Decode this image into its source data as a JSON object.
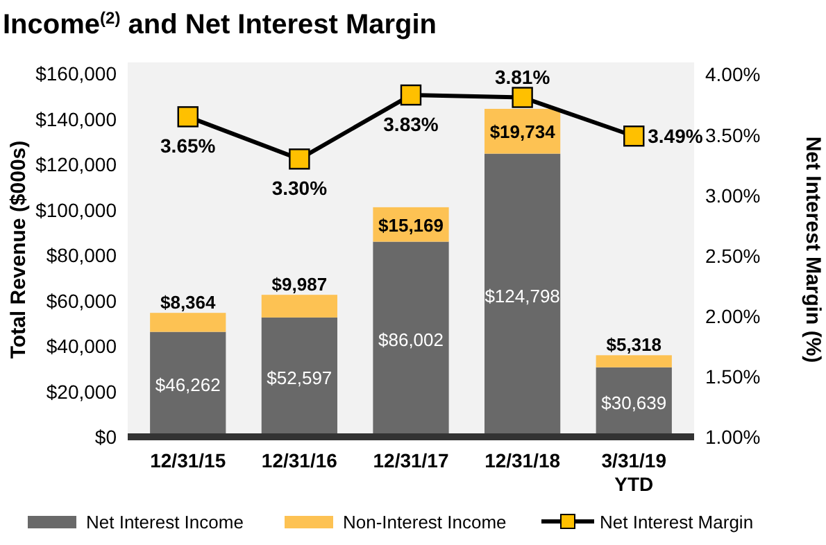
{
  "chart_data": {
    "type": "bar",
    "title": "Income$^{(2)}$ and Net Interest Margin",
    "ylabel": "Total Revenue ($000s)",
    "y2label": "Net Interest Margin (%)",
    "categories": [
      "12/31/15",
      "12/31/16",
      "12/31/17",
      "12/31/18",
      "3/31/19\nYTD"
    ],
    "stacked": true,
    "series": [
      {
        "name": "Net Interest Income",
        "color": "#696969",
        "values": [
          46262,
          52597,
          86002,
          124798,
          30639
        ],
        "value_labels": [
          "$46,262",
          "$52,597",
          "$86,002",
          "$124,798",
          "$30,639"
        ]
      },
      {
        "name": "Non-Interest Income",
        "color": "#fdc253",
        "values": [
          8364,
          9987,
          15169,
          19734,
          5318
        ],
        "value_labels": [
          "$8,364",
          "$9,987",
          "$15,169",
          "$19,734",
          "$5,318"
        ]
      },
      {
        "name": "Net Interest Margin",
        "type": "line",
        "axis": "y2",
        "color": "#000000",
        "values": [
          3.65,
          3.3,
          3.83,
          3.81,
          3.49
        ],
        "value_labels": [
          "3.65%",
          "3.30%",
          "3.83%",
          "3.81%",
          "3.49%"
        ]
      }
    ],
    "marker": "square",
    "ylim": [
      0,
      165000
    ],
    "yticks": [
      {
        "value": 0,
        "label": "$0"
      },
      {
        "value": 20000,
        "label": "$20,000"
      },
      {
        "value": 40000,
        "label": "$40,000"
      },
      {
        "value": 60000,
        "label": "$60,000"
      },
      {
        "value": 80000,
        "label": "$80,000"
      },
      {
        "value": 100000,
        "label": "$100,000"
      },
      {
        "value": 120000,
        "label": "$120,000"
      },
      {
        "value": 140000,
        "label": "$140,000"
      },
      {
        "value": 160000,
        "label": "$160,000"
      }
    ],
    "y2lim": [
      1,
      4.1
    ],
    "y2ticks": [
      {
        "value": 1,
        "label": "1.00%"
      },
      {
        "value": 1.5,
        "label": "1.50%"
      },
      {
        "value": 2,
        "label": "2.00%"
      },
      {
        "value": 2.5,
        "label": "2.50%"
      },
      {
        "value": 3,
        "label": "3.00%"
      },
      {
        "value": 3.5,
        "label": "3.50%"
      },
      {
        "value": 4,
        "label": "4.00%"
      }
    ],
    "grid": false,
    "legend": "bottom"
  }
}
